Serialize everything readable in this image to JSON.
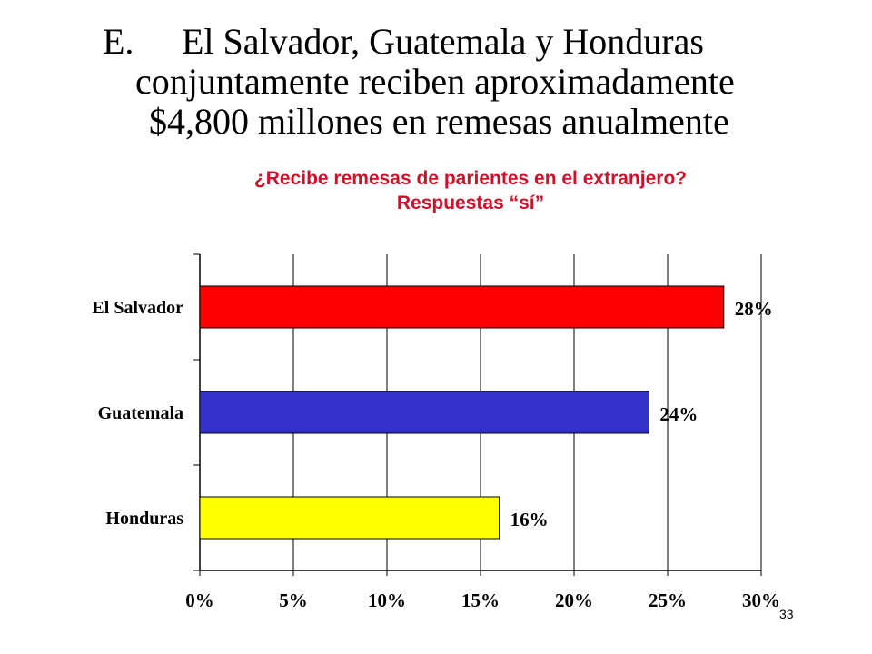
{
  "slide": {
    "marker": "E.",
    "title_lines": [
      "El Salvador, Guatemala y Honduras",
      "conjuntamente reciben aproximadamente",
      "$4,800 millones en remesas anualmente"
    ],
    "page_number": "33"
  },
  "chart_data": {
    "type": "bar",
    "orientation": "horizontal",
    "title": "¿Recibe remesas de parientes en el extranjero?",
    "subtitle": "Respuestas “sí”",
    "categories": [
      "El Salvador",
      "Guatemala",
      "Honduras"
    ],
    "values": [
      28,
      24,
      16
    ],
    "data_labels": [
      "28%",
      "24%",
      "16%"
    ],
    "bar_colors": [
      "#ff0000",
      "#3333cc",
      "#ffff00"
    ],
    "xlim": [
      0,
      30
    ],
    "xticks": [
      0,
      5,
      10,
      15,
      20,
      25,
      30
    ],
    "xtick_labels": [
      "0%",
      "5%",
      "10%",
      "15%",
      "20%",
      "25%",
      "30%"
    ],
    "grid": "vertical",
    "legend": "none"
  }
}
